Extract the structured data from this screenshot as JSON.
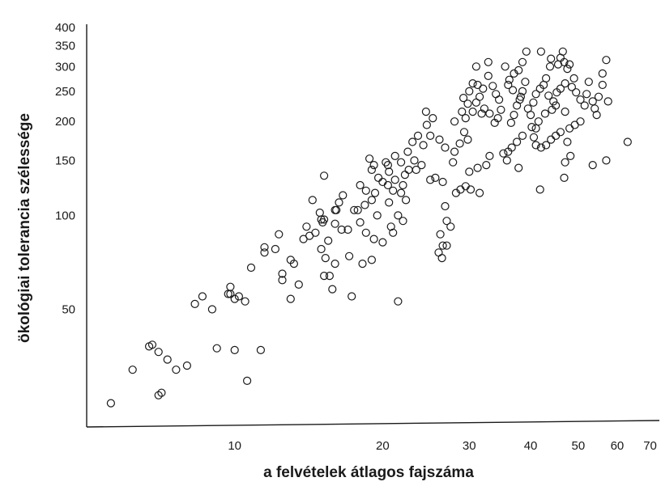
{
  "chart_data": {
    "type": "scatter",
    "title": "",
    "xlabel": "a felvételek átlagos fajszáma",
    "ylabel": "ökológiai tolerancia szélessége",
    "x_scale": "log",
    "y_scale": "log",
    "xlim": [
      5,
      72
    ],
    "ylim": [
      22,
      410
    ],
    "x_ticks": [
      10,
      20,
      30,
      40,
      50,
      60,
      70
    ],
    "y_ticks": [
      50,
      100,
      150,
      200,
      250,
      300,
      350,
      400
    ],
    "grid": false,
    "legend": "none",
    "marker": "open-circle",
    "series": [
      {
        "points": [
          [
            5.6,
            25
          ],
          [
            6.2,
            32
          ],
          [
            6.7,
            38
          ],
          [
            6.8,
            38.5
          ],
          [
            7.0,
            36.5
          ],
          [
            7.0,
            26.5
          ],
          [
            7.1,
            27
          ],
          [
            7.3,
            34.5
          ],
          [
            7.6,
            32
          ],
          [
            8.0,
            33
          ],
          [
            8.3,
            52
          ],
          [
            8.6,
            55
          ],
          [
            9.0,
            50
          ],
          [
            9.2,
            37.5
          ],
          [
            9.7,
            56
          ],
          [
            9.8,
            56
          ],
          [
            9.8,
            59
          ],
          [
            10.0,
            37
          ],
          [
            10.0,
            54
          ],
          [
            10.2,
            55
          ],
          [
            10.5,
            53
          ],
          [
            10.6,
            29.5
          ],
          [
            10.8,
            68
          ],
          [
            11.3,
            37
          ],
          [
            11.5,
            76
          ],
          [
            11.5,
            79
          ],
          [
            12.1,
            78
          ],
          [
            12.3,
            87
          ],
          [
            12.5,
            65
          ],
          [
            12.5,
            62
          ],
          [
            13.0,
            72
          ],
          [
            13.2,
            70
          ],
          [
            13.0,
            54
          ],
          [
            13.5,
            60
          ],
          [
            13.8,
            84
          ],
          [
            14.0,
            92
          ],
          [
            14.2,
            86
          ],
          [
            14.6,
            88
          ],
          [
            15.0,
            97
          ],
          [
            15.2,
            97
          ],
          [
            15.1,
            95
          ],
          [
            14.4,
            112
          ],
          [
            14.9,
            102
          ],
          [
            15.0,
            78
          ],
          [
            15.3,
            73
          ],
          [
            15.5,
            83
          ],
          [
            16.0,
            94
          ],
          [
            16.5,
            90
          ],
          [
            17.0,
            90
          ],
          [
            17.5,
            104
          ],
          [
            18.0,
            95
          ],
          [
            16.1,
            104
          ],
          [
            15.2,
            64
          ],
          [
            15.6,
            64
          ],
          [
            16.0,
            70
          ],
          [
            17.1,
            74
          ],
          [
            15.2,
            134
          ],
          [
            16.0,
            104
          ],
          [
            16.3,
            110
          ],
          [
            16.6,
            116
          ],
          [
            15.8,
            58
          ],
          [
            17.3,
            55
          ],
          [
            21.5,
            53
          ],
          [
            17.8,
            104
          ],
          [
            18.0,
            125
          ],
          [
            18.5,
            120
          ],
          [
            19.0,
            140
          ],
          [
            19.6,
            132
          ],
          [
            18.4,
            108
          ],
          [
            19.0,
            112
          ],
          [
            20.0,
            128
          ],
          [
            20.5,
            145
          ],
          [
            21.0,
            120
          ],
          [
            21.8,
            118
          ],
          [
            22.3,
            112
          ],
          [
            18.5,
            88
          ],
          [
            19.2,
            84
          ],
          [
            20.0,
            82
          ],
          [
            21.0,
            88
          ],
          [
            21.5,
            100
          ],
          [
            18.8,
            152
          ],
          [
            19.2,
            145
          ],
          [
            20.3,
            148
          ],
          [
            20.6,
            138
          ],
          [
            21.2,
            155
          ],
          [
            21.8,
            148
          ],
          [
            22.2,
            135
          ],
          [
            22.6,
            140
          ],
          [
            19.5,
            100
          ],
          [
            20.8,
            92
          ],
          [
            22.0,
            96
          ],
          [
            20.6,
            110
          ],
          [
            19.3,
            118
          ],
          [
            20.5,
            125
          ],
          [
            21.2,
            130
          ],
          [
            22.0,
            125
          ],
          [
            22.5,
            160
          ],
          [
            23.0,
            172
          ],
          [
            23.6,
            180
          ],
          [
            24.2,
            168
          ],
          [
            24.6,
            195
          ],
          [
            25.3,
            205
          ],
          [
            23.2,
            150
          ],
          [
            24.0,
            145
          ],
          [
            25.0,
            130
          ],
          [
            25.6,
            132
          ],
          [
            26.5,
            128
          ],
          [
            24.5,
            215
          ],
          [
            25.0,
            180
          ],
          [
            26.1,
            175
          ],
          [
            26.8,
            165
          ],
          [
            23.4,
            140
          ],
          [
            26.2,
            87
          ],
          [
            26.5,
            80
          ],
          [
            26.4,
            73
          ],
          [
            27.0,
            96
          ],
          [
            27.5,
            92
          ],
          [
            26.8,
            107
          ],
          [
            28.2,
            118
          ],
          [
            28.8,
            121
          ],
          [
            29.5,
            124
          ],
          [
            30.2,
            121
          ],
          [
            31.5,
            118
          ],
          [
            27.8,
            148
          ],
          [
            28.0,
            160
          ],
          [
            28.7,
            170
          ],
          [
            29.3,
            185
          ],
          [
            29.8,
            175
          ],
          [
            28.0,
            200
          ],
          [
            29.0,
            215
          ],
          [
            29.5,
            205
          ],
          [
            30.5,
            215
          ],
          [
            31.0,
            230
          ],
          [
            31.5,
            240
          ],
          [
            31.0,
            300
          ],
          [
            32.8,
            310
          ],
          [
            32.0,
            255
          ],
          [
            32.8,
            280
          ],
          [
            33.5,
            260
          ],
          [
            34.0,
            245
          ],
          [
            34.5,
            235
          ],
          [
            30.0,
            250
          ],
          [
            30.5,
            265
          ],
          [
            31.2,
            262
          ],
          [
            29.2,
            238
          ],
          [
            29.8,
            228
          ],
          [
            31.8,
            212
          ],
          [
            32.2,
            220
          ],
          [
            33.0,
            212
          ],
          [
            33.8,
            198
          ],
          [
            34.3,
            205
          ],
          [
            34.8,
            218
          ],
          [
            30.0,
            138
          ],
          [
            31.2,
            142
          ],
          [
            32.5,
            145
          ],
          [
            33.0,
            155
          ],
          [
            35.2,
            158
          ],
          [
            35.8,
            150
          ],
          [
            36.5,
            198
          ],
          [
            37.0,
            210
          ],
          [
            37.5,
            225
          ],
          [
            38.0,
            235
          ],
          [
            38.5,
            250
          ],
          [
            39.0,
            268
          ],
          [
            36.2,
            272
          ],
          [
            37.0,
            285
          ],
          [
            37.8,
            292
          ],
          [
            38.5,
            310
          ],
          [
            39.2,
            335
          ],
          [
            35.5,
            300
          ],
          [
            36.0,
            262
          ],
          [
            36.8,
            252
          ],
          [
            38.2,
            240
          ],
          [
            39.5,
            220
          ],
          [
            40.0,
            210
          ],
          [
            40.5,
            230
          ],
          [
            41.0,
            245
          ],
          [
            41.8,
            255
          ],
          [
            42.5,
            262
          ],
          [
            43.0,
            275
          ],
          [
            42.0,
            335
          ],
          [
            44.0,
            318
          ],
          [
            43.8,
            300
          ],
          [
            45.5,
            305
          ],
          [
            46.0,
            320
          ],
          [
            46.8,
            310
          ],
          [
            47.5,
            295
          ],
          [
            46.5,
            335
          ],
          [
            48.0,
            305
          ],
          [
            49.0,
            275
          ],
          [
            48.5,
            258
          ],
          [
            49.5,
            248
          ],
          [
            50.5,
            235
          ],
          [
            51.5,
            225
          ],
          [
            52.5,
            268
          ],
          [
            52.0,
            245
          ],
          [
            53.5,
            232
          ],
          [
            54.0,
            220
          ],
          [
            55.0,
            240
          ],
          [
            56.0,
            262
          ],
          [
            56.0,
            285
          ],
          [
            57.0,
            315
          ],
          [
            57.5,
            232
          ],
          [
            54.5,
            210
          ],
          [
            50.5,
            200
          ],
          [
            49.2,
            195
          ],
          [
            48.0,
            190
          ],
          [
            47.0,
            215
          ],
          [
            45.0,
            225
          ],
          [
            44.2,
            218
          ],
          [
            44.5,
            232
          ],
          [
            45.2,
            248
          ],
          [
            46.0,
            255
          ],
          [
            47.0,
            265
          ],
          [
            43.5,
            242
          ],
          [
            42.8,
            212
          ],
          [
            41.5,
            200
          ],
          [
            41.0,
            190
          ],
          [
            40.2,
            192
          ],
          [
            40.6,
            178
          ],
          [
            41.0,
            168
          ],
          [
            42.0,
            165
          ],
          [
            43.0,
            168
          ],
          [
            44.0,
            175
          ],
          [
            45.0,
            180
          ],
          [
            46.0,
            185
          ],
          [
            47.5,
            172
          ],
          [
            38.5,
            180
          ],
          [
            37.5,
            172
          ],
          [
            36.6,
            165
          ],
          [
            36.0,
            160
          ],
          [
            37.8,
            142
          ],
          [
            41.8,
            121
          ],
          [
            47.0,
            148
          ],
          [
            48.2,
            155
          ],
          [
            46.8,
            132
          ],
          [
            53.5,
            145
          ],
          [
            57.0,
            150
          ],
          [
            63.0,
            172
          ],
          [
            26.0,
            76
          ],
          [
            27.0,
            80
          ],
          [
            19.0,
            72
          ],
          [
            18.2,
            70
          ]
        ]
      }
    ]
  }
}
